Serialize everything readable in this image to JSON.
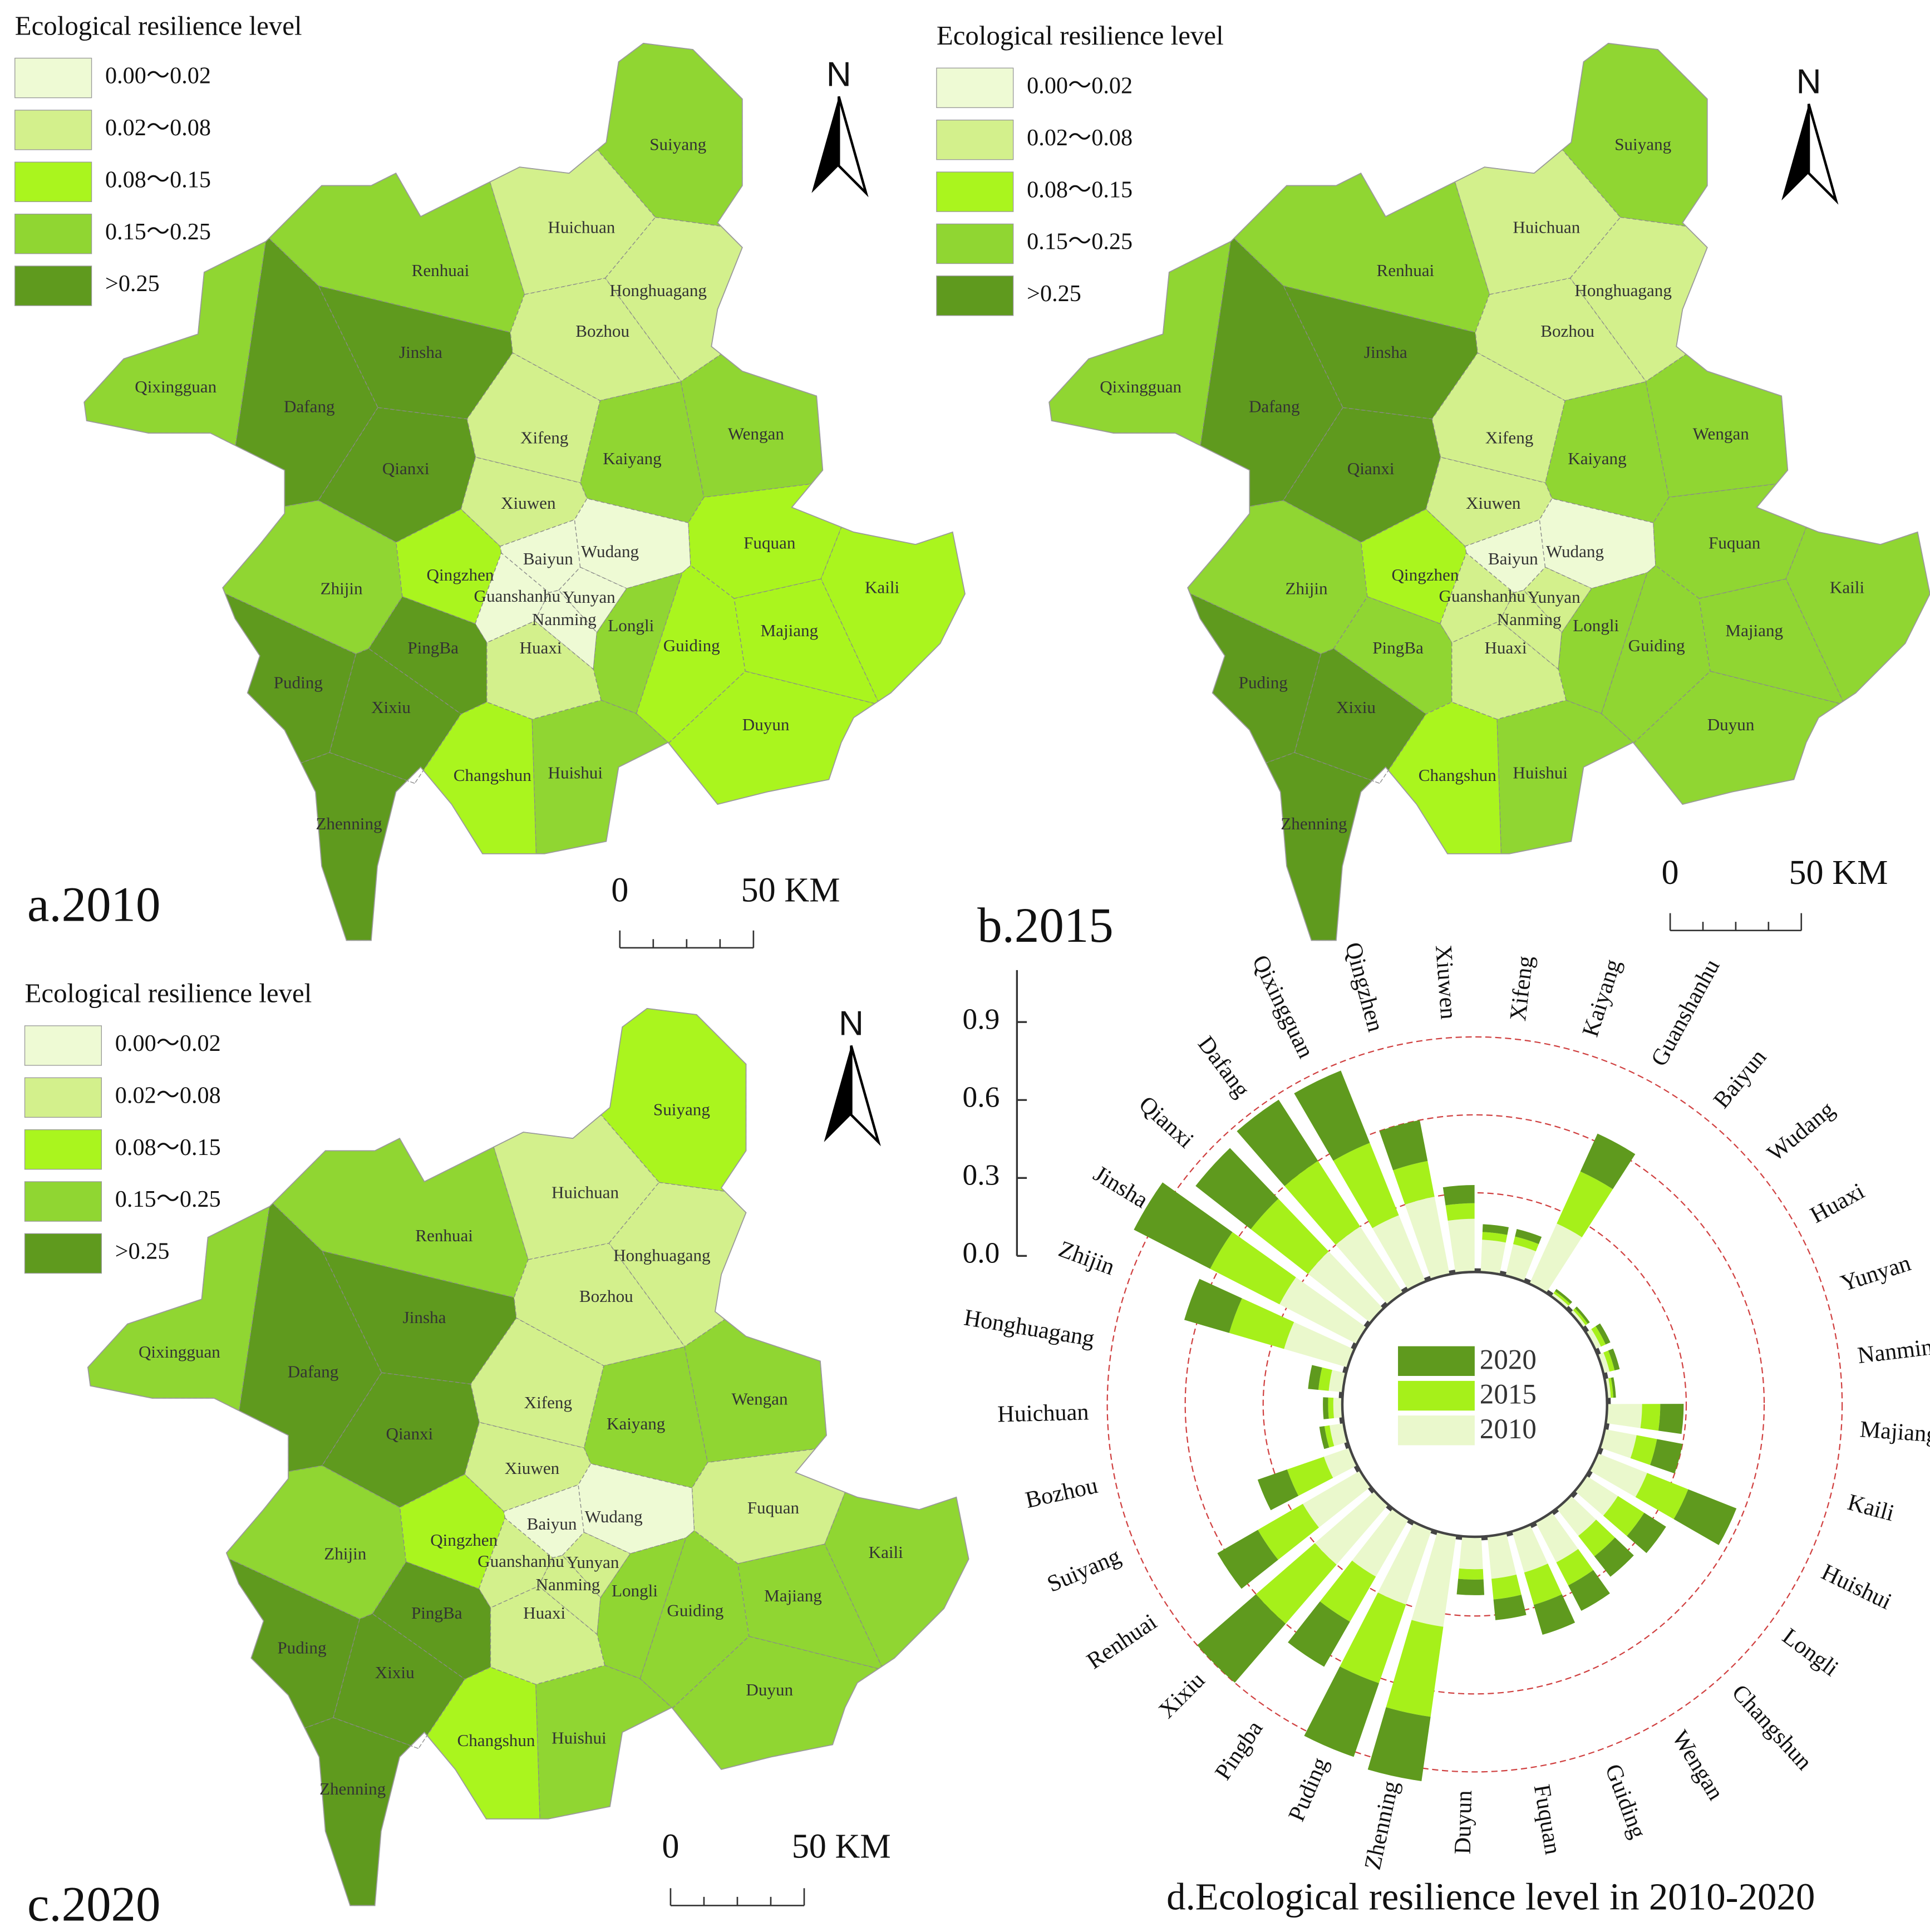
{
  "legend": {
    "title": "Ecological resilience level",
    "classes": [
      {
        "label": "0.00～0.02",
        "color": "#eefad4"
      },
      {
        "label": "0.02～0.08",
        "color": "#d3f08c"
      },
      {
        "label": "0.08～0.15",
        "color": "#aaf51e"
      },
      {
        "label": "0.15～0.25",
        "color": "#90d632"
      },
      {
        "label": ">0.25",
        "color": "#5f9a1e"
      }
    ]
  },
  "north": "N",
  "scale_bar": {
    "start": "0",
    "end": "50 KM"
  },
  "counties": [
    "Suiyang",
    "Huichuan",
    "Renhuai",
    "Honghuagang",
    "Jinsha",
    "Bozhou",
    "Qixingguan",
    "Dafang",
    "Qianxi",
    "Xifeng",
    "Kaiyang",
    "Wengan",
    "Xiuwen",
    "Baiyun",
    "Wudang",
    "Fuquan",
    "Kaili",
    "Zhijin",
    "Qingzhen",
    "Guanshanhu",
    "Yunyan",
    "Nanming",
    "Longli",
    "Guiding",
    "Majiang",
    "PingBa",
    "Huaxi",
    "Puding",
    "Xixiu",
    "Duyun",
    "Changshun",
    "Huishui",
    "Zhenning"
  ],
  "maps": [
    {
      "label": "a.2010",
      "county_levels": [
        3,
        1,
        3,
        1,
        4,
        1,
        3,
        4,
        4,
        1,
        3,
        3,
        1,
        0,
        0,
        2,
        2,
        3,
        2,
        0,
        0,
        0,
        3,
        2,
        2,
        4,
        1,
        4,
        4,
        2,
        2,
        3,
        4
      ]
    },
    {
      "label": "b.2015",
      "county_levels": [
        3,
        1,
        3,
        1,
        4,
        1,
        3,
        4,
        4,
        1,
        3,
        3,
        1,
        0,
        0,
        3,
        3,
        3,
        2,
        1,
        1,
        1,
        3,
        3,
        3,
        3,
        1,
        4,
        4,
        3,
        2,
        3,
        4
      ]
    },
    {
      "label": "c.2020",
      "county_levels": [
        2,
        1,
        3,
        1,
        4,
        1,
        3,
        4,
        4,
        1,
        3,
        3,
        1,
        0,
        0,
        1,
        3,
        3,
        2,
        1,
        1,
        1,
        3,
        3,
        3,
        4,
        1,
        4,
        4,
        3,
        2,
        3,
        4
      ]
    }
  ],
  "chart_data": {
    "type": "radial_bar",
    "title": "d.Ecological resilience level in 2010-2020",
    "categories": [
      "Qixingguan",
      "Qingzhen",
      "Xiuwen",
      "Xifeng",
      "Kaiyang",
      "Guanshanhu",
      "Baiyun",
      "Wudang",
      "Huaxi",
      "Yunyan",
      "Nanming",
      "Majiang",
      "Kaili",
      "Huishui",
      "Longli",
      "Changshun",
      "Wengan",
      "Guiding",
      "Fuquan",
      "Duyun",
      "Zhenning",
      "Puding",
      "Pingba",
      "Xixiu",
      "Renhuai",
      "Suiyang",
      "Bozhou",
      "Huichuan",
      "Honghuagang",
      "Zhijin",
      "Jinsha",
      "Qianxi",
      "Dafang"
    ],
    "series": [
      {
        "name": "2010",
        "color": "#eaf8cc",
        "values": [
          0.27,
          0.3,
          0.2,
          0.12,
          0.12,
          0.25,
          0.01,
          0.01,
          0.02,
          0.02,
          0.01,
          0.13,
          0.12,
          0.2,
          0.14,
          0.13,
          0.17,
          0.16,
          0.16,
          0.12,
          0.35,
          0.3,
          0.25,
          0.3,
          0.25,
          0.1,
          0.05,
          0.03,
          0.05,
          0.25,
          0.33,
          0.3,
          0.3
        ]
      },
      {
        "name": "2015",
        "color": "#a6f01a",
        "values": [
          0.3,
          0.14,
          0.06,
          0.03,
          0.03,
          0.22,
          0.01,
          0.01,
          0.02,
          0.02,
          0.01,
          0.07,
          0.08,
          0.17,
          0.12,
          0.1,
          0.1,
          0.13,
          0.08,
          0.04,
          0.35,
          0.32,
          0.2,
          0.3,
          0.2,
          0.15,
          0.02,
          0.02,
          0.04,
          0.22,
          0.3,
          0.28,
          0.3
        ]
      },
      {
        "name": "2020",
        "color": "#5f9a1e",
        "values": [
          0.3,
          0.16,
          0.07,
          0.03,
          0.03,
          0.16,
          0.01,
          0.01,
          0.02,
          0.02,
          0.01,
          0.09,
          0.1,
          0.2,
          0.1,
          0.1,
          0.11,
          0.12,
          0.08,
          0.06,
          0.25,
          0.3,
          0.2,
          0.3,
          0.18,
          0.12,
          0.02,
          0.02,
          0.04,
          0.18,
          0.33,
          0.27,
          0.28
        ]
      }
    ],
    "ylim": [
      0,
      1.1
    ],
    "yticks": [
      {
        "value": 0,
        "label": "0.0"
      },
      0.3,
      0.6,
      0.9
    ]
  }
}
